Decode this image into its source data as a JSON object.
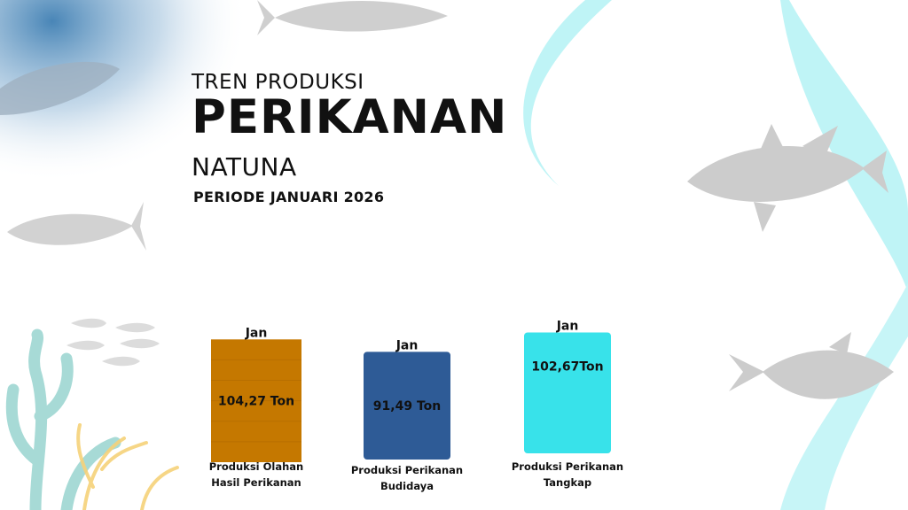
{
  "title": {
    "line1": "TREN PRODUKSI",
    "line2": "PERIKANAN",
    "line3": "NATUNA",
    "period": "PERIODE JANUARI 2026"
  },
  "colors": {
    "bar_olahan": "#c57800",
    "bar_budidaya": "#2e5b96",
    "bar_tangkap": "#38e2ea",
    "ribbon": "#bff4f6",
    "fish": "#cfcfcf"
  },
  "chart_data": {
    "type": "bar",
    "categories": [
      "Produksi Olahan Hasil Perikanan",
      "Produksi Perikanan Budidaya",
      "Produksi Perikanan Tangkap"
    ],
    "category_lines": [
      [
        "Produksi Olahan",
        "Hasil Perikanan"
      ],
      [
        "Produksi Perikanan",
        "Budidaya"
      ],
      [
        "Produksi Perikanan",
        "Tangkap"
      ]
    ],
    "bar_top_labels": [
      "Jan",
      "Jan",
      "Jan"
    ],
    "values": [
      104.27,
      91.49,
      102.67
    ],
    "value_labels": [
      "104,27 Ton",
      "91,49 Ton",
      "102,67Ton"
    ],
    "unit": "Ton",
    "bar_colors": [
      "#c57800",
      "#2e5b96",
      "#38e2ea"
    ],
    "grid": false,
    "legend": "none"
  }
}
